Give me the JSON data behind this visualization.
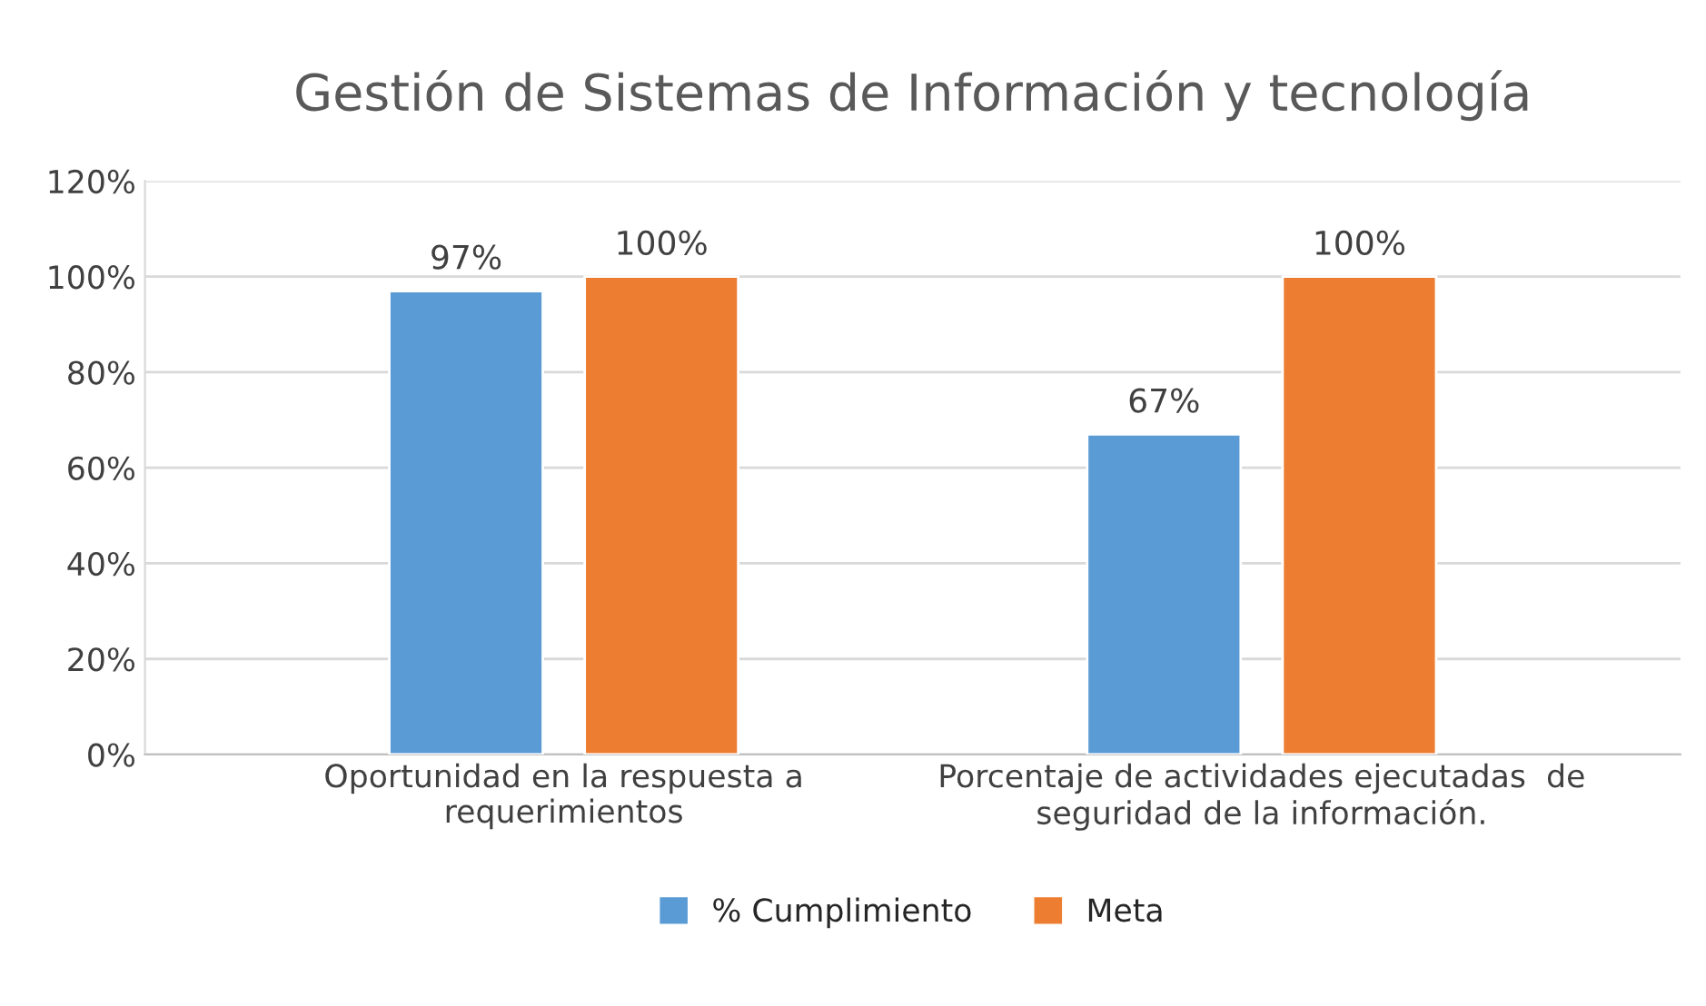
{
  "chart_data": {
    "type": "bar",
    "title": "Gestión de Sistemas de Información y tecnología",
    "categories": [
      "Oportunidad en la respuesta a\nrequerimientos",
      "Porcentaje de actividades ejecutadas  de\nseguridad de la información."
    ],
    "series": [
      {
        "name": "% Cumplimiento",
        "color": "#5b9bd5",
        "values": [
          97,
          67
        ],
        "value_labels": [
          "97%",
          "67%"
        ]
      },
      {
        "name": "Meta",
        "color": "#ed7d31",
        "values": [
          100,
          100
        ],
        "value_labels": [
          "100%",
          "100%"
        ]
      }
    ],
    "ylim": [
      0,
      120
    ],
    "yticks": [
      {
        "value": 0,
        "label": "0%"
      },
      {
        "value": 20,
        "label": "20%"
      },
      {
        "value": 40,
        "label": "40%"
      },
      {
        "value": 60,
        "label": "60%"
      },
      {
        "value": 80,
        "label": "80%"
      },
      {
        "value": 100,
        "label": "100%"
      },
      {
        "value": 120,
        "label": "120%"
      }
    ],
    "grid": "y",
    "legend": "bottom"
  }
}
